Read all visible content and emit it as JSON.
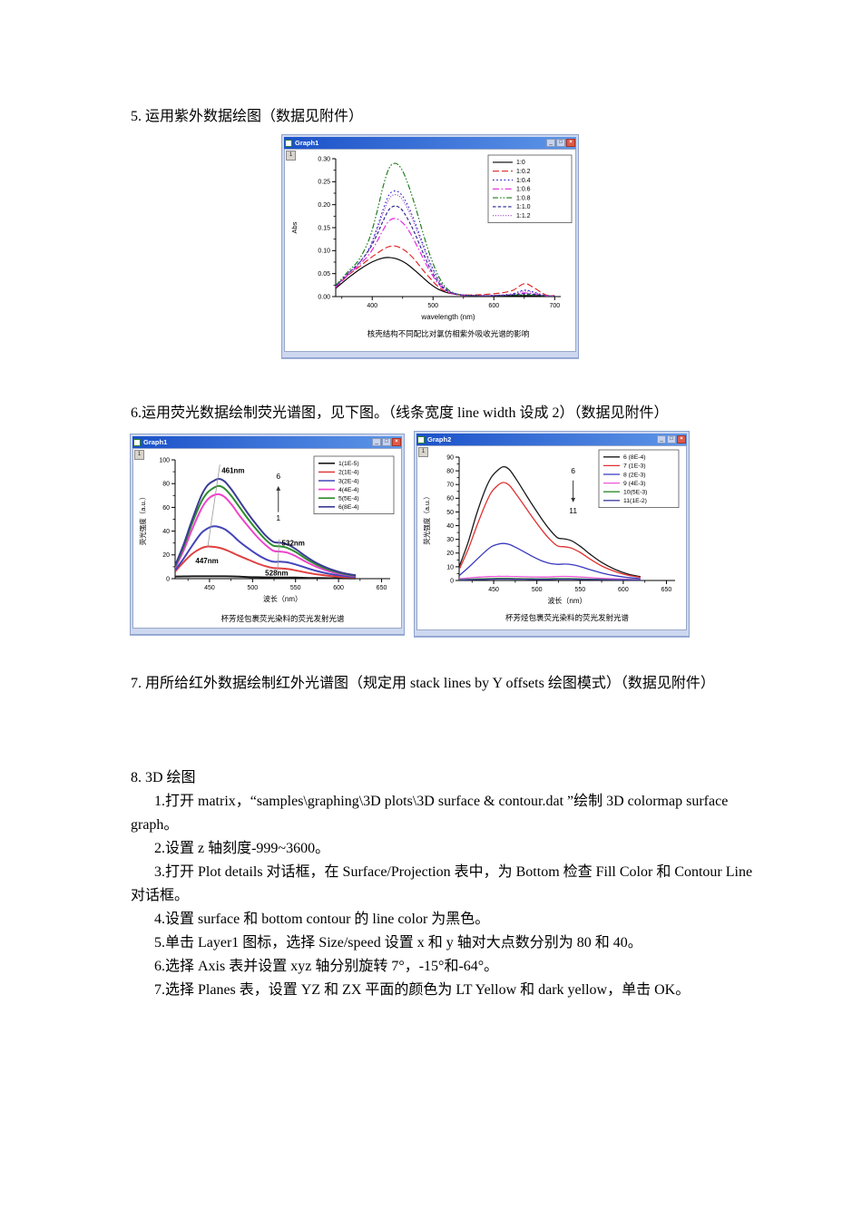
{
  "sections": {
    "item5": "5. 运用紫外数据绘图（数据见附件）",
    "item6": "6.运用荧光数据绘制荧光谱图，见下图。（线条宽度 line width 设成 2）（数据见附件）",
    "item7": "7. 用所给红外数据绘制红外光谱图（规定用 stack lines by Y offsets 绘图模式）（数据见附件）",
    "item8_title": "8. 3D 绘图",
    "item8_steps": [
      "1.打开 matrix，“samples\\graphing\\3D plots\\3D surface & contour.dat ”绘制 3D colormap surface graph。",
      "2.设置 z 轴刻度-999~3600。",
      "3.打开 Plot details 对话框，在 Surface/Projection 表中，为 Bottom 检查 Fill Color 和 Contour Line 对话框。",
      "4.设置 surface 和 bottom contour 的 line color 为黑色。",
      "5.单击 Layer1 图标，选择 Size/speed 设置 x 和 y 轴对大点数分别为 80 和 40。",
      "6.选择 Axis 表并设置 xyz 轴分别旋转 7°，-15°和-64°。",
      "7.选择 Planes 表，设置 YZ 和 ZX 平面的颜色为 LT Yellow 和 dark yellow，单击 OK。"
    ]
  },
  "chart_data": [
    {
      "type": "line",
      "window_title": "Graph1",
      "layer_label": "1",
      "xlabel": "wavelength (nm)",
      "ylabel": "Abs",
      "caption": "核壳结构不同配比对氯仿相紫外吸收光谱的影响",
      "xlim": [
        340,
        710
      ],
      "ylim": [
        0,
        0.3
      ],
      "xticks": [
        400,
        500,
        600,
        700
      ],
      "yticks": [
        0.0,
        0.05,
        0.1,
        0.15,
        0.2,
        0.25,
        0.3
      ],
      "xminor": 50,
      "yminor": 0.025,
      "ydec": 2,
      "legend_position": "top-right",
      "x": [
        340,
        360,
        378,
        395,
        408,
        418,
        428,
        438,
        448,
        458,
        470,
        482,
        495,
        510,
        525,
        545,
        575,
        605,
        630,
        650,
        665,
        685,
        700
      ],
      "series": [
        {
          "name": "1:0",
          "color": "#000000",
          "dash": "solid",
          "y": [
            0.018,
            0.04,
            0.058,
            0.072,
            0.08,
            0.084,
            0.085,
            0.083,
            0.078,
            0.07,
            0.057,
            0.043,
            0.028,
            0.015,
            0.008,
            0.004,
            0.002,
            0.002,
            0.002,
            0.002,
            0.002,
            0.001,
            0.001
          ]
        },
        {
          "name": "1:0.2",
          "color": "#dd2222",
          "dash": "dash",
          "y": [
            0.02,
            0.046,
            0.064,
            0.082,
            0.094,
            0.103,
            0.109,
            0.11,
            0.105,
            0.096,
            0.08,
            0.06,
            0.04,
            0.02,
            0.009,
            0.004,
            0.004,
            0.007,
            0.013,
            0.028,
            0.02,
            0.004,
            0.002
          ]
        },
        {
          "name": "1:0.4",
          "color": "#2222cc",
          "dash": "dot",
          "y": [
            0.022,
            0.05,
            0.072,
            0.105,
            0.15,
            0.19,
            0.222,
            0.23,
            0.222,
            0.2,
            0.163,
            0.12,
            0.075,
            0.035,
            0.013,
            0.004,
            0.002,
            0.003,
            0.006,
            0.014,
            0.01,
            0.002,
            0.001
          ]
        },
        {
          "name": "1:0.6",
          "color": "#e622dd",
          "dash": "dashdot",
          "y": [
            0.02,
            0.047,
            0.068,
            0.092,
            0.12,
            0.145,
            0.165,
            0.17,
            0.163,
            0.148,
            0.12,
            0.088,
            0.055,
            0.026,
            0.01,
            0.003,
            0.002,
            0.002,
            0.004,
            0.008,
            0.006,
            0.002,
            0.001
          ]
        },
        {
          "name": "1:0.8",
          "color": "#1a7a1a",
          "dash": "dashdotdot",
          "y": [
            0.024,
            0.054,
            0.08,
            0.125,
            0.185,
            0.24,
            0.28,
            0.29,
            0.278,
            0.248,
            0.2,
            0.145,
            0.09,
            0.042,
            0.015,
            0.004,
            0.002,
            0.002,
            0.003,
            0.004,
            0.003,
            0.002,
            0.001
          ]
        },
        {
          "name": "1:1.0",
          "color": "#22228c",
          "dash": "shortdash",
          "y": [
            0.022,
            0.05,
            0.073,
            0.102,
            0.135,
            0.165,
            0.19,
            0.197,
            0.19,
            0.17,
            0.138,
            0.1,
            0.062,
            0.029,
            0.011,
            0.004,
            0.002,
            0.002,
            0.004,
            0.006,
            0.005,
            0.002,
            0.001
          ]
        },
        {
          "name": "1:1.2",
          "color": "#a050c0",
          "dash": "dots",
          "y": [
            0.022,
            0.05,
            0.072,
            0.104,
            0.145,
            0.182,
            0.213,
            0.222,
            0.214,
            0.192,
            0.156,
            0.114,
            0.071,
            0.033,
            0.012,
            0.004,
            0.002,
            0.003,
            0.005,
            0.012,
            0.009,
            0.002,
            0.001
          ]
        }
      ],
      "annotations": []
    },
    {
      "type": "line",
      "window_title": "Graph1",
      "layer_label": "1",
      "xlabel": "波长（nm）",
      "ylabel": "荧光强度（a.u.）",
      "caption": "杯芳烃包裹荧光染料的荧光发射光谱",
      "xlim": [
        410,
        660
      ],
      "ylim": [
        0,
        100
      ],
      "xticks": [
        450,
        500,
        550,
        600,
        650
      ],
      "yticks": [
        0,
        20,
        40,
        60,
        80,
        100
      ],
      "xminor": 25,
      "yminor": 10,
      "ydec": 0,
      "line_width": 2,
      "legend_position": "top-right",
      "x": [
        410,
        420,
        430,
        440,
        447,
        454,
        461,
        468,
        476,
        485,
        495,
        505,
        515,
        524,
        532,
        540,
        550,
        562,
        575,
        590,
        605,
        620
      ],
      "series": [
        {
          "name": "1(1E-5)",
          "color": "#1a1a1a",
          "dash": "solid",
          "y": [
            1.8,
            1.9,
            2,
            2,
            2,
            2,
            2,
            2,
            1.9,
            1.7,
            1.4,
            1.2,
            1.1,
            1,
            1,
            1,
            0.9,
            0.7,
            0.5,
            0.4,
            0.3,
            0.2
          ]
        },
        {
          "name": "2(1E-4)",
          "color": "#e04040",
          "dash": "solid",
          "y": [
            6,
            14,
            21,
            25.5,
            27,
            26.8,
            26,
            24.5,
            22,
            19,
            16,
            13,
            10.5,
            9,
            8.7,
            8.2,
            7,
            5.2,
            3.6,
            2.3,
            1.4,
            0.9
          ]
        },
        {
          "name": "3(2E-4)",
          "color": "#4444bb",
          "dash": "solid",
          "y": [
            7,
            17,
            28,
            38,
            42,
            44,
            43.5,
            41.5,
            37,
            31,
            25.5,
            20.5,
            16.5,
            14.3,
            14.3,
            13.8,
            12,
            9.2,
            6.4,
            4,
            2.4,
            1.4
          ]
        },
        {
          "name": "4(4E-4)",
          "color": "#ee44cc",
          "dash": "solid",
          "y": [
            9,
            24,
            42,
            58,
            66,
            70,
            71,
            68.5,
            62,
            53,
            44,
            35.5,
            28.5,
            23.5,
            22.8,
            22,
            19,
            14.2,
            9.8,
            6,
            3.6,
            2.1
          ]
        },
        {
          "name": "5(5E-4)",
          "color": "#2e8b2e",
          "dash": "solid",
          "y": [
            10,
            27,
            47,
            64,
            72,
            76,
            78,
            75.5,
            69,
            60,
            50,
            41,
            33,
            27.8,
            27.2,
            26,
            22.5,
            16.8,
            11.6,
            7.2,
            4.2,
            2.5
          ]
        },
        {
          "name": "6(8E-4)",
          "color": "#3c3c96",
          "dash": "solid",
          "y": [
            11,
            29,
            50,
            69,
            78,
            82,
            84,
            81.5,
            74.5,
            65,
            54.5,
            45,
            36.5,
            31,
            30.2,
            29,
            25,
            18.8,
            13,
            8.2,
            4.8,
            2.8
          ]
        }
      ],
      "annotations": [
        {
          "t": "text",
          "x": 464,
          "y": 89,
          "text": "461nm",
          "anchor": "start",
          "size": 8,
          "bold": true
        },
        {
          "t": "text",
          "x": 447,
          "y": 13,
          "text": "447nm",
          "anchor": "middle",
          "size": 8,
          "bold": true
        },
        {
          "t": "text",
          "x": 534,
          "y": 28,
          "text": "532nm",
          "anchor": "start",
          "size": 8,
          "bold": true
        },
        {
          "t": "text",
          "x": 528,
          "y": 2.5,
          "text": "528nm",
          "anchor": "middle",
          "size": 8,
          "bold": true
        },
        {
          "t": "line",
          "x1": 462,
          "y1": 96,
          "x2": 448,
          "y2": 27
        },
        {
          "t": "line",
          "x1": 531,
          "y1": 33,
          "x2": 529,
          "y2": 6
        },
        {
          "t": "text",
          "x": 530,
          "y": 84,
          "text": "6",
          "anchor": "middle",
          "size": 8.5
        },
        {
          "t": "arrow",
          "x": 530,
          "y1": 56,
          "y2": 78
        },
        {
          "t": "text",
          "x": 530,
          "y": 49,
          "text": "1",
          "anchor": "middle",
          "size": 8.5
        }
      ]
    },
    {
      "type": "line",
      "window_title": "Graph2",
      "layer_label": "1",
      "xlabel": "波长（nm）",
      "ylabel": "荧光强度（a.u.）",
      "caption": "杯芳烃包裹荧光染料的荧光发射光谱",
      "xlim": [
        410,
        660
      ],
      "ylim": [
        0,
        90
      ],
      "xticks": [
        450,
        500,
        550,
        600,
        650
      ],
      "yticks": [
        0,
        10,
        20,
        30,
        40,
        50,
        60,
        70,
        80,
        90
      ],
      "xminor": 25,
      "yminor": 5,
      "ydec": 0,
      "line_width": 1.3,
      "legend_position": "top-right",
      "x": [
        410,
        420,
        430,
        440,
        447,
        454,
        461,
        468,
        476,
        485,
        495,
        505,
        515,
        524,
        532,
        540,
        550,
        562,
        575,
        590,
        605,
        620
      ],
      "series": [
        {
          "name": "6 (8E-4)",
          "color": "#1a1a1a",
          "dash": "solid",
          "y": [
            10,
            27,
            48,
            66,
            75,
            80,
            83,
            81,
            74,
            65,
            55,
            45.5,
            37,
            31.2,
            30.4,
            29,
            25,
            19,
            13.2,
            8.2,
            4.8,
            2.8
          ]
        },
        {
          "name": "7 (1E-3)",
          "color": "#e03030",
          "dash": "solid",
          "y": [
            8,
            22,
            39,
            55,
            64,
            69,
            71.5,
            69.5,
            63,
            55,
            46,
            37.5,
            30,
            25.2,
            24.6,
            23.6,
            20.5,
            15.5,
            10.6,
            6.6,
            3.9,
            2.3
          ]
        },
        {
          "name": "8 (2E-3)",
          "color": "#3838c0",
          "dash": "solid",
          "y": [
            3.5,
            9,
            15,
            21,
            24.5,
            26.3,
            27,
            26.3,
            24,
            21,
            17.5,
            14.5,
            12.5,
            11.8,
            12,
            11.6,
            10.2,
            7.8,
            5.5,
            3.5,
            2.2,
            1.3
          ]
        },
        {
          "name": "9 (4E-3)",
          "color": "#ee55dd",
          "dash": "solid",
          "y": [
            1.2,
            1.8,
            2.3,
            2.7,
            2.9,
            3,
            3,
            3,
            2.9,
            2.7,
            2.6,
            2.5,
            2.6,
            2.9,
            3,
            2.9,
            2.6,
            2.1,
            1.6,
            1.2,
            0.9,
            0.7
          ]
        },
        {
          "name": "10(5E-3)",
          "color": "#2e8b2e",
          "dash": "solid",
          "y": [
            0.6,
            0.9,
            1.1,
            1.3,
            1.4,
            1.5,
            1.5,
            1.5,
            1.4,
            1.3,
            1.3,
            1.2,
            1.3,
            1.4,
            1.4,
            1.4,
            1.2,
            1,
            0.8,
            0.6,
            0.5,
            0.4
          ]
        },
        {
          "name": "11(1E-2)",
          "color": "#4040a0",
          "dash": "solid",
          "y": [
            0.4,
            0.5,
            0.7,
            0.8,
            0.9,
            1,
            1,
            1,
            0.9,
            0.9,
            0.8,
            0.8,
            0.8,
            0.9,
            0.9,
            0.9,
            0.8,
            0.7,
            0.6,
            0.5,
            0.4,
            0.3
          ]
        }
      ],
      "annotations": [
        {
          "t": "text",
          "x": 542,
          "y": 78,
          "text": "6",
          "anchor": "middle",
          "size": 8.5
        },
        {
          "t": "arrow",
          "x": 542,
          "y1": 73,
          "y2": 57
        },
        {
          "t": "text",
          "x": 542,
          "y": 49,
          "text": "11",
          "anchor": "middle",
          "size": 8.5
        }
      ]
    }
  ]
}
